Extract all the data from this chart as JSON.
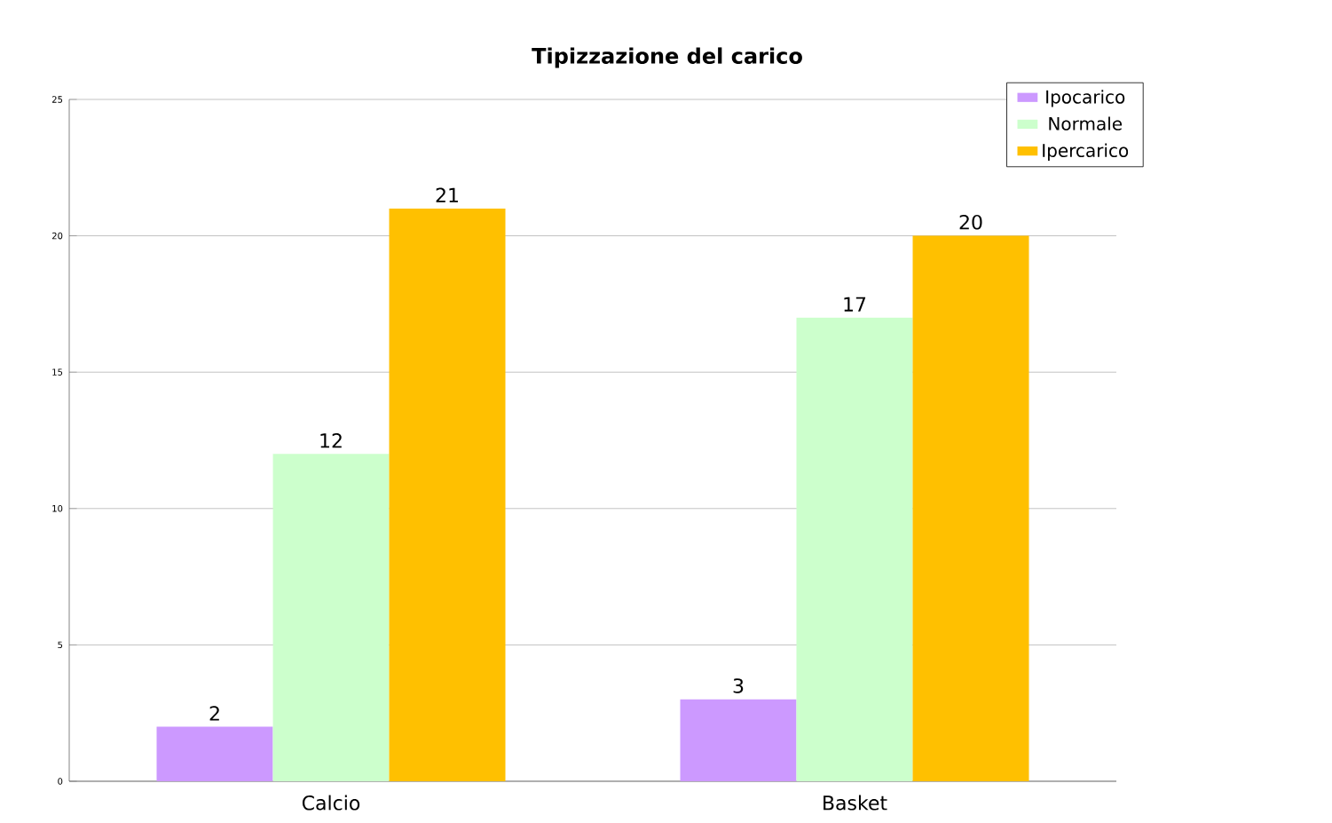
{
  "chart_data": {
    "type": "bar",
    "title": "Tipizzazione del carico",
    "categories": [
      "Calcio",
      "Basket"
    ],
    "series": [
      {
        "name": "Ipocarico",
        "color": "#cc99ff",
        "values": [
          2,
          3
        ]
      },
      {
        "name": "Normale",
        "color": "#ccffcc",
        "values": [
          12,
          17
        ]
      },
      {
        "name": "Ipercarico",
        "color": "#ffc000",
        "values": [
          21,
          20
        ]
      }
    ],
    "ylim": [
      0,
      25
    ],
    "yticks": [
      0,
      5,
      10,
      15,
      20,
      25
    ],
    "grid": "y",
    "legend": "top right",
    "data_labels": true
  }
}
